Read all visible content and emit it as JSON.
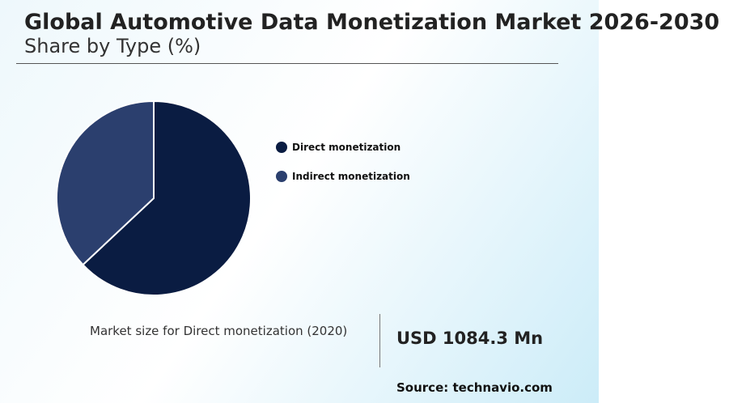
{
  "header": {
    "title": "Global Automotive Data Monetization Market 2026-2030",
    "subtitle": "Share by Type (%)"
  },
  "chart_data": {
    "type": "pie",
    "categories": [
      "Direct monetization",
      "Indirect monetization"
    ],
    "values": [
      63,
      37
    ],
    "colors": [
      "#0a1c42",
      "#2b3f6e"
    ],
    "start_angle_deg": 0,
    "direction": "clockwise",
    "legend_position": "right"
  },
  "market": {
    "label": "Market size for Direct monetization (2020)",
    "value": "USD 1084.3 Mn"
  },
  "source": "Source: technavio.com"
}
